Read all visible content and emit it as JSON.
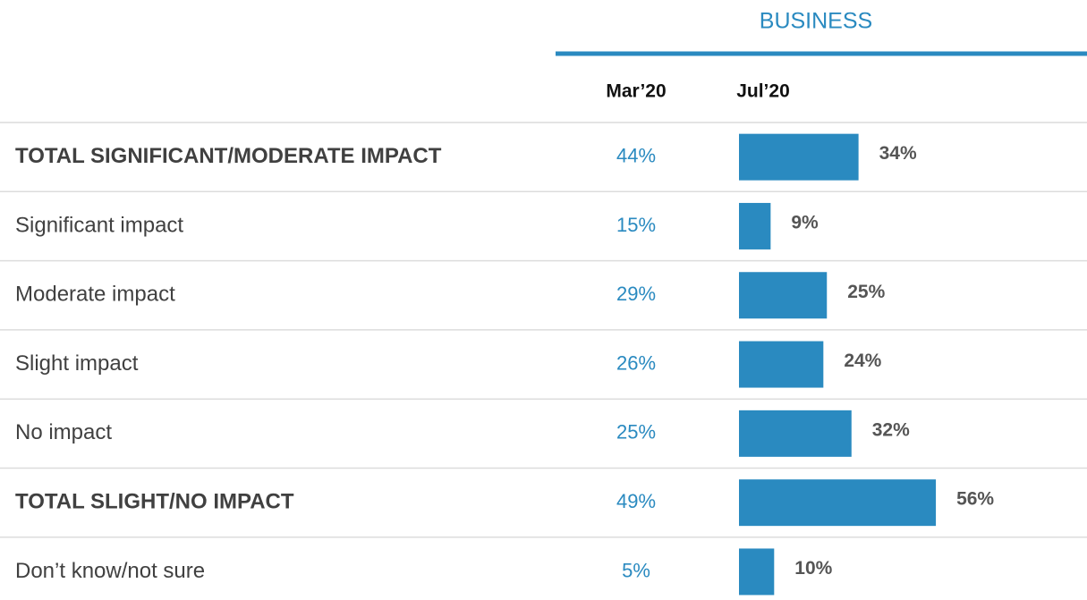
{
  "chart_data": {
    "type": "bar",
    "title": "BUSINESS",
    "categories": [
      "TOTAL SIGNIFICANT/MODERATE IMPACT",
      "Significant impact",
      "Moderate impact",
      "Slight impact",
      "No impact",
      "TOTAL SLIGHT/NO IMPACT",
      "Don’t know/not sure"
    ],
    "series": [
      {
        "name": "Mar’20",
        "color": "#2a8ac0",
        "values": [
          44,
          15,
          29,
          26,
          25,
          49,
          5
        ],
        "value_labels": [
          "44%",
          "15%",
          "29%",
          "26%",
          "25%",
          "49%",
          "5%"
        ]
      },
      {
        "name": "Jul’20",
        "color": "#2a8ac0",
        "values": [
          34,
          9,
          25,
          24,
          32,
          56,
          10
        ],
        "value_labels": [
          "34%",
          "9%",
          "25%",
          "24%",
          "32%",
          "56%",
          "10%"
        ]
      }
    ]
  }
}
